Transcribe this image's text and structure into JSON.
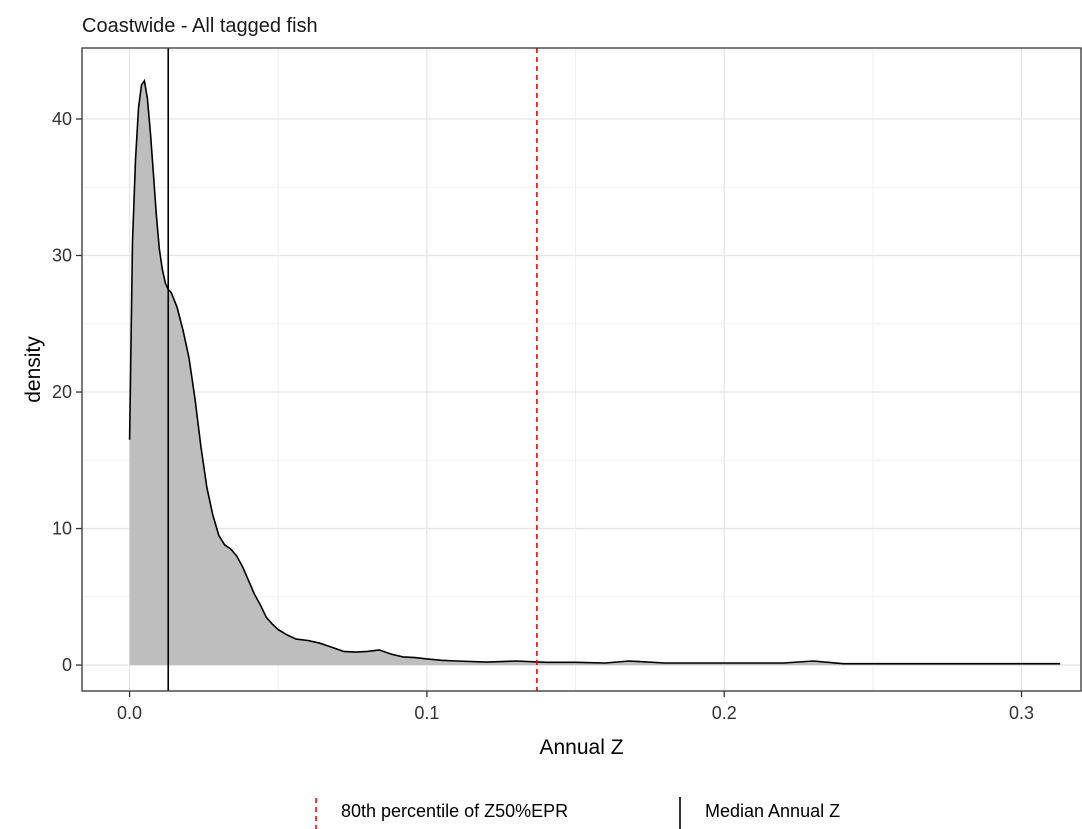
{
  "chart_data": {
    "type": "area",
    "title": "Coastwide - All tagged fish",
    "xlabel": "Annual Z",
    "ylabel": "density",
    "xlim": [
      -0.016,
      0.32
    ],
    "ylim": [
      -1.9,
      45.2
    ],
    "x_ticks": [
      0.0,
      0.1,
      0.2,
      0.3
    ],
    "x_tick_labels": [
      "0.0",
      "0.1",
      "0.2",
      "0.3"
    ],
    "y_ticks": [
      0,
      10,
      20,
      30,
      40
    ],
    "y_tick_labels": [
      "0",
      "10",
      "20",
      "30",
      "40"
    ],
    "grid": true,
    "legend_position": "bottom",
    "series": [
      {
        "fill": "#bebebe",
        "stroke": "#000000",
        "x": [
          0,
          0.0005,
          0.001,
          0.002,
          0.003,
          0.004,
          0.005,
          0.006,
          0.007,
          0.008,
          0.009,
          0.01,
          0.011,
          0.012,
          0.013,
          0.014,
          0.016,
          0.018,
          0.02,
          0.022,
          0.024,
          0.026,
          0.028,
          0.03,
          0.032,
          0.034,
          0.036,
          0.038,
          0.04,
          0.042,
          0.044,
          0.046,
          0.048,
          0.05,
          0.053,
          0.056,
          0.06,
          0.064,
          0.068,
          0.072,
          0.076,
          0.08,
          0.084,
          0.088,
          0.092,
          0.096,
          0.1,
          0.105,
          0.11,
          0.12,
          0.13,
          0.14,
          0.15,
          0.16,
          0.168,
          0.18,
          0.2,
          0.22,
          0.23,
          0.24,
          0.26,
          0.28,
          0.3,
          0.313
        ],
        "values": [
          16.5,
          24,
          31,
          37,
          40.8,
          42.5,
          42.8,
          41.5,
          39,
          36,
          33,
          30.5,
          29,
          28,
          27.5,
          27.3,
          26.2,
          24.5,
          22.5,
          19.5,
          16,
          13,
          11,
          9.5,
          8.8,
          8.5,
          8.0,
          7.2,
          6.2,
          5.2,
          4.4,
          3.5,
          3.0,
          2.6,
          2.2,
          1.9,
          1.8,
          1.6,
          1.3,
          1.0,
          0.95,
          1.0,
          1.1,
          0.8,
          0.6,
          0.55,
          0.45,
          0.35,
          0.3,
          0.22,
          0.3,
          0.2,
          0.2,
          0.15,
          0.3,
          0.15,
          0.15,
          0.15,
          0.3,
          0.1,
          0.1,
          0.1,
          0.1,
          0.1
        ]
      }
    ],
    "reference_lines": [
      {
        "name": "80th percentile of Z50%EPR",
        "x": 0.137,
        "color": "#ff0000",
        "style": "dashed"
      },
      {
        "name": "Median Annual Z",
        "x": 0.013,
        "color": "#000000",
        "style": "solid"
      }
    ]
  }
}
